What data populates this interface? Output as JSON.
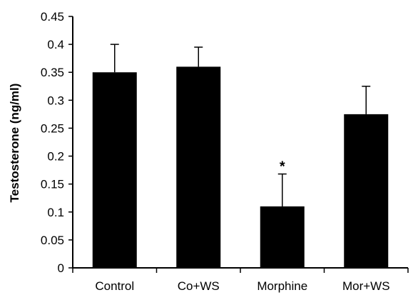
{
  "chart_data": {
    "type": "bar",
    "categories": [
      "Control",
      "Co+WS",
      "Morphine",
      "Mor+WS"
    ],
    "values": [
      0.35,
      0.36,
      0.11,
      0.275
    ],
    "errors": [
      0.05,
      0.035,
      0.058,
      0.05
    ],
    "annotations": [
      "",
      "",
      "*",
      ""
    ],
    "ylabel": "Testosterone (ng/ml)",
    "xlabel": "",
    "ylim": [
      0,
      0.45
    ],
    "yticks": [
      "0",
      "0.05",
      "0.1",
      "0.15",
      "0.2",
      "0.25",
      "0.3",
      "0.35",
      "0.4",
      "0.45"
    ],
    "grid": false,
    "legend": "none",
    "bar_color": "#000000"
  }
}
